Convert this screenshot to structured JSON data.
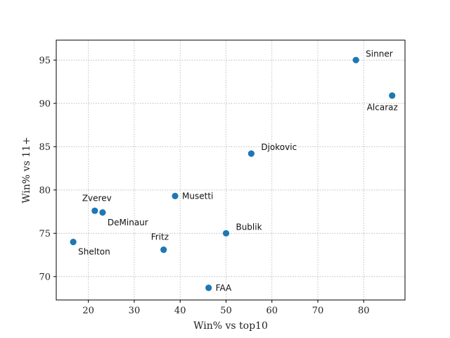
{
  "chart_data": {
    "type": "scatter",
    "title": "",
    "xlabel": "Win% vs top10",
    "ylabel": "Win% vs 11+",
    "xlim": [
      13,
      89
    ],
    "ylim": [
      67.3,
      97.3
    ],
    "xticks": [
      20,
      30,
      40,
      50,
      60,
      70,
      80
    ],
    "yticks": [
      70,
      75,
      80,
      85,
      90,
      95
    ],
    "grid": true,
    "point_color": "#1f77b4",
    "points": [
      {
        "label": "Sinner",
        "x": 78.3,
        "y": 95.0,
        "label_pos": "upper-right"
      },
      {
        "label": "Alcaraz",
        "x": 86.2,
        "y": 90.9,
        "label_pos": "lower-left"
      },
      {
        "label": "Djokovic",
        "x": 55.5,
        "y": 84.2,
        "label_pos": "upper-right"
      },
      {
        "label": "Musetti",
        "x": 38.9,
        "y": 79.3,
        "label_pos": "right"
      },
      {
        "label": "Zverev",
        "x": 21.4,
        "y": 77.6,
        "label_pos": "above"
      },
      {
        "label": "DeMinaur",
        "x": 23.1,
        "y": 77.4,
        "label_pos": "lower-right"
      },
      {
        "label": "Bublik",
        "x": 50.0,
        "y": 75.0,
        "label_pos": "upper-right"
      },
      {
        "label": "Shelton",
        "x": 16.7,
        "y": 74.0,
        "label_pos": "lower-right"
      },
      {
        "label": "Fritz",
        "x": 36.4,
        "y": 73.1,
        "label_pos": "above"
      },
      {
        "label": "FAA",
        "x": 46.2,
        "y": 68.7,
        "label_pos": "right"
      }
    ]
  }
}
